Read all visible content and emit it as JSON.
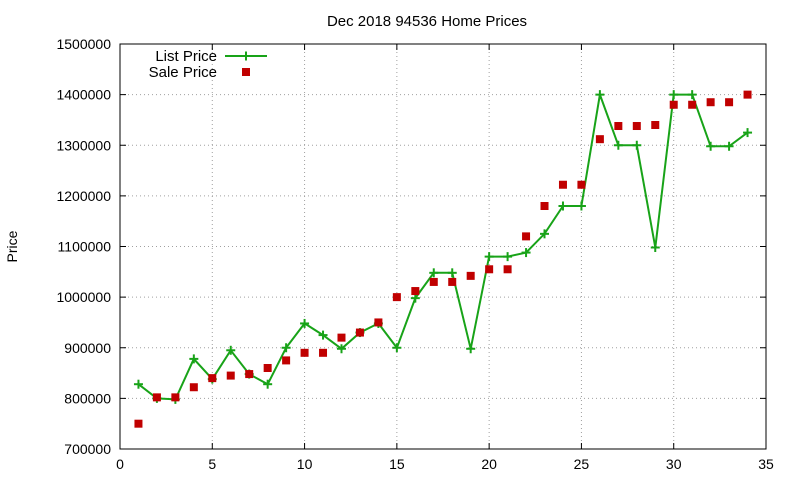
{
  "chart_data": {
    "type": "line",
    "title": "Dec 2018 94536 Home Prices",
    "xlabel": "",
    "ylabel": "Price",
    "xlim": [
      0,
      35
    ],
    "ylim": [
      700000,
      1500000
    ],
    "xticks": [
      0,
      5,
      10,
      15,
      20,
      25,
      30,
      35
    ],
    "yticks": [
      700000,
      800000,
      900000,
      1000000,
      1100000,
      1200000,
      1300000,
      1400000,
      1500000
    ],
    "grid": true,
    "legend_position": "top-left",
    "x": [
      1,
      2,
      3,
      4,
      5,
      6,
      7,
      8,
      9,
      10,
      11,
      12,
      13,
      14,
      15,
      16,
      17,
      18,
      19,
      20,
      21,
      22,
      23,
      24,
      25,
      26,
      27,
      28,
      29,
      30,
      31,
      32,
      33,
      34
    ],
    "series": [
      {
        "name": "List Price",
        "style": "line-with-plus-markers",
        "color": "#18a318",
        "values": [
          828000,
          800000,
          798000,
          878000,
          838000,
          895000,
          848000,
          828000,
          900000,
          948000,
          925000,
          898000,
          930000,
          948000,
          900000,
          998000,
          1048000,
          1048000,
          898000,
          1080000,
          1080000,
          1088000,
          1125000,
          1180000,
          1180000,
          1400000,
          1300000,
          1300000,
          1098000,
          1400000,
          1400000,
          1298000,
          1298000,
          1325000
        ]
      },
      {
        "name": "Sale Price",
        "style": "square-markers",
        "color": "#c00000",
        "values": [
          750000,
          802000,
          802000,
          822000,
          840000,
          845000,
          848000,
          860000,
          875000,
          890000,
          890000,
          920000,
          930000,
          950000,
          1000000,
          1012000,
          1030000,
          1030000,
          1042000,
          1055000,
          1055000,
          1120000,
          1180000,
          1222000,
          1222000,
          1312000,
          1338000,
          1338000,
          1340000,
          1380000,
          1380000,
          1385000,
          1385000,
          1400000
        ]
      }
    ]
  }
}
